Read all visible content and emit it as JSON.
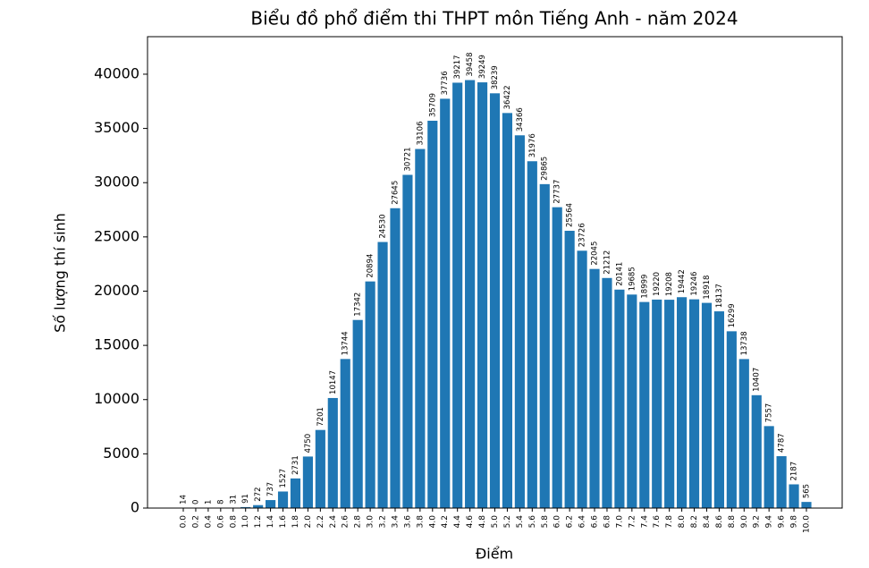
{
  "chart_data": {
    "type": "bar",
    "title": "Biểu đồ phổ điểm thi THPT môn Tiếng Anh - năm 2024",
    "x_label": "Điểm",
    "y_label": "Số lượng thí sinh",
    "categories": [
      "0.0",
      "0.2",
      "0.4",
      "0.6",
      "0.8",
      "1.0",
      "1.2",
      "1.4",
      "1.6",
      "1.8",
      "2.0",
      "2.2",
      "2.4",
      "2.6",
      "2.8",
      "3.0",
      "3.2",
      "3.4",
      "3.6",
      "3.8",
      "4.0",
      "4.2",
      "4.4",
      "4.6",
      "4.8",
      "5.0",
      "5.2",
      "5.4",
      "5.6",
      "5.8",
      "6.0",
      "6.2",
      "6.4",
      "6.6",
      "6.8",
      "7.0",
      "7.2",
      "7.4",
      "7.6",
      "7.8",
      "8.0",
      "8.2",
      "8.4",
      "8.6",
      "8.8",
      "9.0",
      "9.2",
      "9.4",
      "9.6",
      "9.8",
      "10.0"
    ],
    "values": [
      14,
      0,
      1,
      8,
      31,
      91,
      272,
      737,
      1527,
      2731,
      4750,
      7201,
      10147,
      13744,
      17342,
      20894,
      24530,
      27645,
      30721,
      33106,
      35709,
      37736,
      39217,
      39458,
      39249,
      38239,
      36422,
      34366,
      31976,
      29865,
      27737,
      25564,
      23726,
      22045,
      21212,
      20141,
      19685,
      18999,
      19220,
      19208,
      19442,
      19246,
      18918,
      18137,
      16299,
      13738,
      10407,
      7557,
      4787,
      2187,
      565
    ],
    "color": "#1f77b4",
    "ylim": [
      0,
      43460
    ],
    "yticks": [
      0,
      5000,
      10000,
      15000,
      20000,
      25000,
      30000,
      35000,
      40000
    ],
    "grid": false
  }
}
